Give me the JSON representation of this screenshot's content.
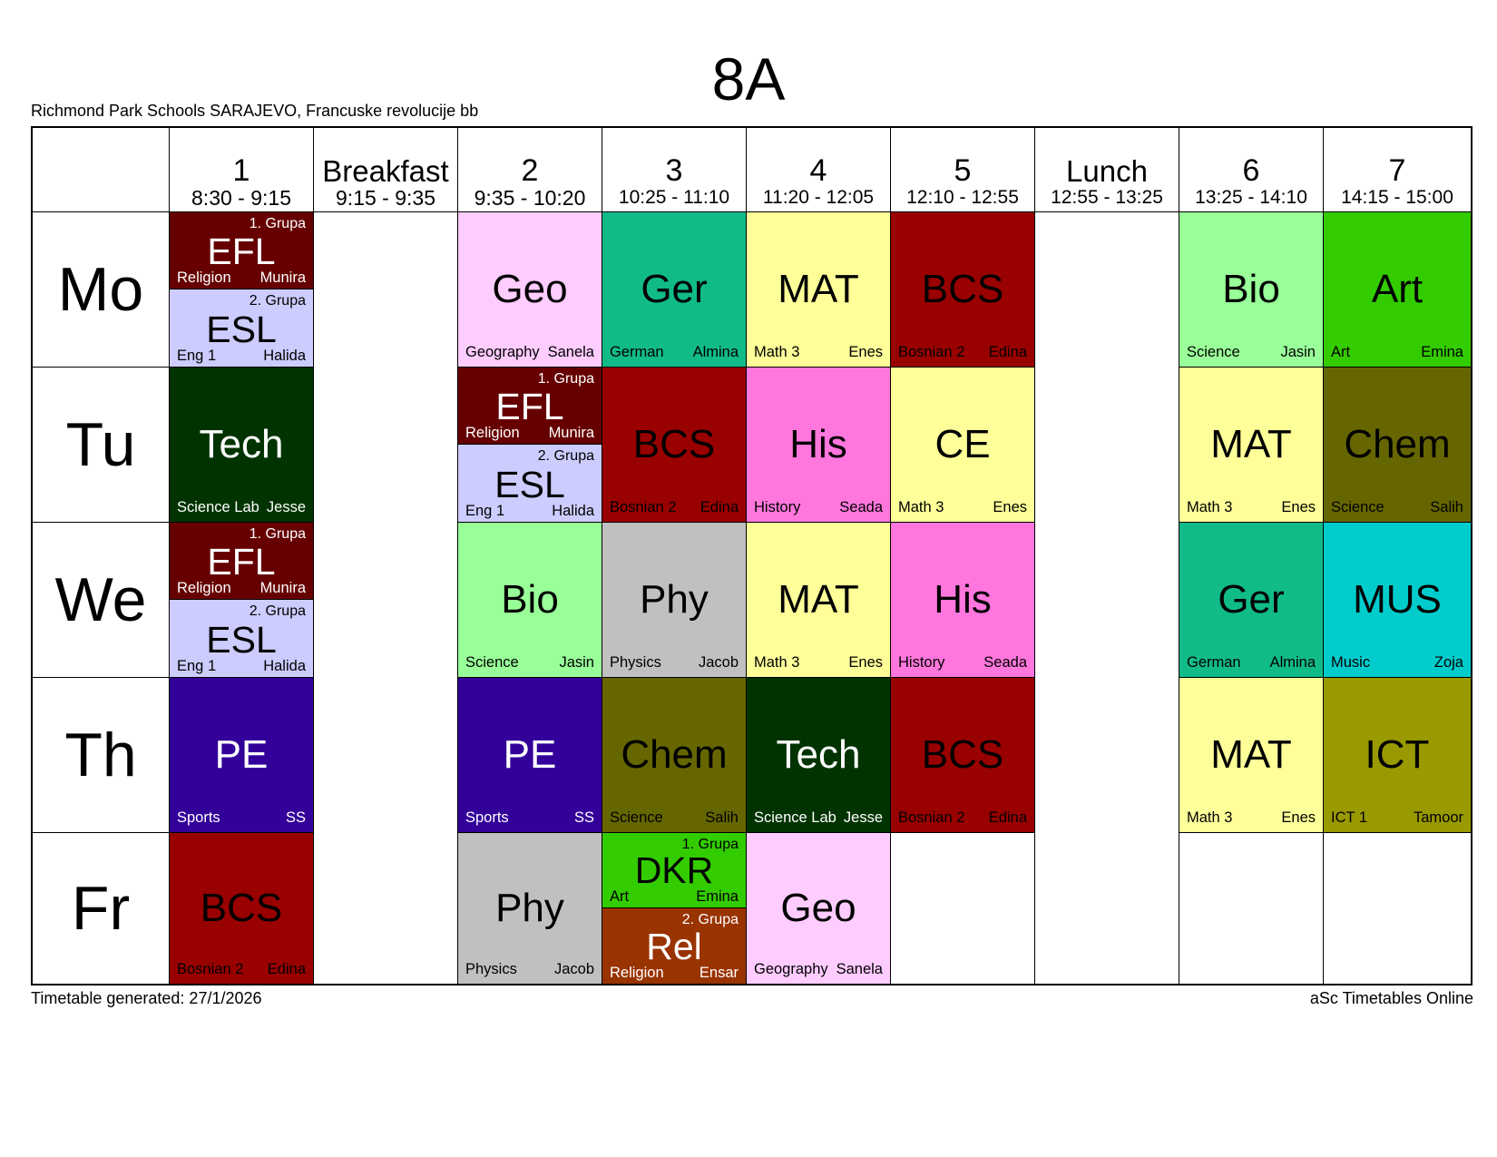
{
  "class_name": "8A",
  "school": "Richmond Park Schools SARAJEVO, Francuske revolucije bb",
  "footer": {
    "generated": "Timetable generated: 27/1/2026",
    "brand": "aSc Timetables Online"
  },
  "periods": [
    {
      "num": "1",
      "time": "8:30 - 9:15"
    },
    {
      "num": "Breakfast",
      "time": "9:15 - 9:35"
    },
    {
      "num": "2",
      "time": "9:35 - 10:20"
    },
    {
      "num": "3",
      "time": "10:25 - 11:10"
    },
    {
      "num": "4",
      "time": "11:20 - 12:05"
    },
    {
      "num": "5",
      "time": "12:10 - 12:55"
    },
    {
      "num": "Lunch",
      "time": "12:55 - 13:25"
    },
    {
      "num": "6",
      "time": "13:25 - 14:10"
    },
    {
      "num": "7",
      "time": "14:15 - 15:00"
    }
  ],
  "days": [
    "Mo",
    "Tu",
    "We",
    "Th",
    "Fr"
  ],
  "colors": {
    "efl": "#660000",
    "esl": "#ccccff",
    "geo": "#ffccff",
    "ger": "#11bb88",
    "mat": "#ffff99",
    "bcs": "#990000",
    "bio": "#99ff99",
    "art": "#33cc00",
    "tech": "#003300",
    "his": "#ff77dd",
    "chem": "#666600",
    "phy": "#c0c0c0",
    "mus": "#00cccc",
    "pe": "#330099",
    "ict": "#999900",
    "dkr": "#33cc00",
    "rel": "#993300"
  },
  "cells": {
    "mo": {
      "p1": {
        "g1": {
          "group": "1. Grupa",
          "abbr": "EFL",
          "room": "Religion",
          "teacher": "Munira"
        },
        "g2": {
          "group": "2. Grupa",
          "abbr": "ESL",
          "room": "Eng 1",
          "teacher": "Halida"
        }
      },
      "p2": {
        "abbr": "Geo",
        "room": "Geography",
        "teacher": "Sanela"
      },
      "p3": {
        "abbr": "Ger",
        "room": "German",
        "teacher": "Almina"
      },
      "p4": {
        "abbr": "MAT",
        "room": "Math 3",
        "teacher": "Enes"
      },
      "p5": {
        "abbr": "BCS",
        "room": "Bosnian 2",
        "teacher": "Edina"
      },
      "p6": {
        "abbr": "Bio",
        "room": "Science",
        "teacher": "Jasin"
      },
      "p7": {
        "abbr": "Art",
        "room": "Art",
        "teacher": "Emina"
      }
    },
    "tu": {
      "p1": {
        "abbr": "Tech",
        "room": "Science Lab",
        "teacher": "Jesse"
      },
      "p2": {
        "g1": {
          "group": "1. Grupa",
          "abbr": "EFL",
          "room": "Religion",
          "teacher": "Munira"
        },
        "g2": {
          "group": "2. Grupa",
          "abbr": "ESL",
          "room": "Eng 1",
          "teacher": "Halida"
        }
      },
      "p3": {
        "abbr": "BCS",
        "room": "Bosnian 2",
        "teacher": "Edina"
      },
      "p4": {
        "abbr": "His",
        "room": "History",
        "teacher": "Seada"
      },
      "p5": {
        "abbr": "CE",
        "room": "Math 3",
        "teacher": "Enes"
      },
      "p6": {
        "abbr": "MAT",
        "room": "Math 3",
        "teacher": "Enes"
      },
      "p7": {
        "abbr": "Chem",
        "room": "Science",
        "teacher": "Salih"
      }
    },
    "we": {
      "p1": {
        "g1": {
          "group": "1. Grupa",
          "abbr": "EFL",
          "room": "Religion",
          "teacher": "Munira"
        },
        "g2": {
          "group": "2. Grupa",
          "abbr": "ESL",
          "room": "Eng 1",
          "teacher": "Halida"
        }
      },
      "p2": {
        "abbr": "Bio",
        "room": "Science",
        "teacher": "Jasin"
      },
      "p3": {
        "abbr": "Phy",
        "room": "Physics",
        "teacher": "Jacob"
      },
      "p4": {
        "abbr": "MAT",
        "room": "Math 3",
        "teacher": "Enes"
      },
      "p5": {
        "abbr": "His",
        "room": "History",
        "teacher": "Seada"
      },
      "p6": {
        "abbr": "Ger",
        "room": "German",
        "teacher": "Almina"
      },
      "p7": {
        "abbr": "MUS",
        "room": "Music",
        "teacher": "Zoja"
      }
    },
    "th": {
      "p1": {
        "abbr": "PE",
        "room": "Sports",
        "teacher": "SS"
      },
      "p2": {
        "abbr": "PE",
        "room": "Sports",
        "teacher": "SS"
      },
      "p3": {
        "abbr": "Chem",
        "room": "Science",
        "teacher": "Salih"
      },
      "p4": {
        "abbr": "Tech",
        "room": "Science Lab",
        "teacher": "Jesse"
      },
      "p5": {
        "abbr": "BCS",
        "room": "Bosnian 2",
        "teacher": "Edina"
      },
      "p6": {
        "abbr": "MAT",
        "room": "Math 3",
        "teacher": "Enes"
      },
      "p7": {
        "abbr": "ICT",
        "room": "ICT 1",
        "teacher": "Tamoor"
      }
    },
    "fr": {
      "p1": {
        "abbr": "BCS",
        "room": "Bosnian 2",
        "teacher": "Edina"
      },
      "p2": {
        "abbr": "Phy",
        "room": "Physics",
        "teacher": "Jacob"
      },
      "p3": {
        "g1": {
          "group": "1. Grupa",
          "abbr": "DKR",
          "room": "Art",
          "teacher": "Emina"
        },
        "g2": {
          "group": "2. Grupa",
          "abbr": "Rel",
          "room": "Religion",
          "teacher": "Ensar"
        }
      },
      "p4": {
        "abbr": "Geo",
        "room": "Geography",
        "teacher": "Sanela"
      }
    }
  }
}
